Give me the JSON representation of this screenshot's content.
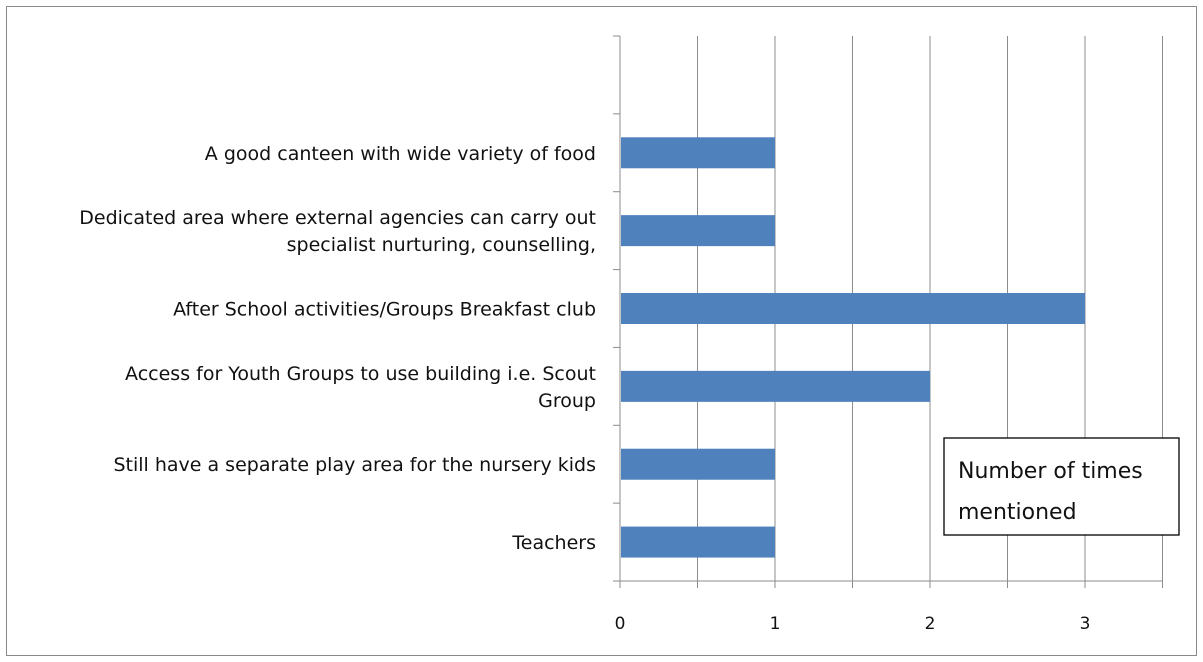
{
  "chart_data": {
    "type": "bar",
    "orientation": "horizontal",
    "categories": [
      [
        "A good canteen with wide variety of food"
      ],
      [
        "Dedicated area where external agencies can carry out",
        "specialist nurturing, counselling,"
      ],
      [
        "After School activities/Groups Breakfast club"
      ],
      [
        "Access for Youth Groups to use building i.e. Scout",
        "Group"
      ],
      [
        "Still have a separate play area for the nursery kids"
      ],
      [
        "Teachers"
      ]
    ],
    "series": [
      {
        "name": "Number of times mentioned",
        "values": [
          1,
          1,
          3,
          2,
          1,
          1
        ],
        "color": "#4f81bd"
      }
    ],
    "xticks": [
      0,
      1,
      2,
      3
    ],
    "xlim": [
      0,
      3.5
    ],
    "grid": "vertical",
    "legend_position": "bottom-right",
    "legend_lines": [
      "Number of times",
      "mentioned"
    ]
  }
}
